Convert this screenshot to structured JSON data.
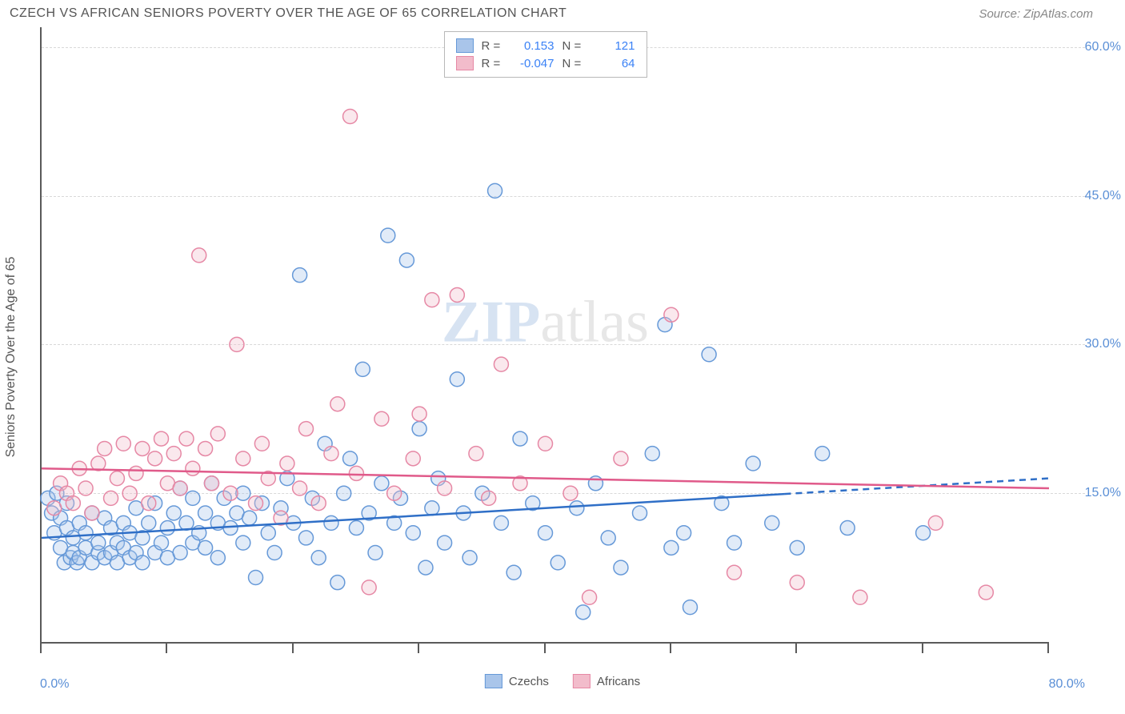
{
  "title": "CZECH VS AFRICAN SENIORS POVERTY OVER THE AGE OF 65 CORRELATION CHART",
  "source": "Source: ZipAtlas.com",
  "y_axis_label": "Seniors Poverty Over the Age of 65",
  "watermark_a": "ZIP",
  "watermark_b": "atlas",
  "chart": {
    "type": "scatter",
    "xlim": [
      0,
      80
    ],
    "ylim": [
      0,
      62
    ],
    "x_min_label": "0.0%",
    "x_max_label": "80.0%",
    "x_tick_positions": [
      0,
      10,
      20,
      30,
      40,
      50,
      60,
      70,
      80
    ],
    "y_ticks": [
      {
        "v": 15.0,
        "label": "15.0%"
      },
      {
        "v": 30.0,
        "label": "30.0%"
      },
      {
        "v": 45.0,
        "label": "45.0%"
      },
      {
        "v": 60.0,
        "label": "60.0%"
      }
    ],
    "grid_color": "#d8d8d8",
    "background_color": "#ffffff",
    "marker_radius": 9,
    "marker_stroke_width": 1.5,
    "marker_fill_opacity": 0.35,
    "series": [
      {
        "name": "Czechs",
        "legend_label": "Czechs",
        "color_stroke": "#6699d8",
        "color_fill": "#a9c5ea",
        "trend_color": "#2f6fc7",
        "trend_width": 2.5,
        "trend": {
          "x1": 0,
          "y1": 10.5,
          "x2": 80,
          "y2": 16.5,
          "dash_from_x": 59
        },
        "stats": {
          "R_label": "R =",
          "R": "0.153",
          "N_label": "N =",
          "N": "121"
        },
        "points": [
          [
            0.5,
            14.5
          ],
          [
            0.8,
            13.0
          ],
          [
            1.0,
            11.0
          ],
          [
            1.2,
            15.0
          ],
          [
            1.5,
            9.5
          ],
          [
            1.5,
            12.5
          ],
          [
            1.8,
            8.0
          ],
          [
            2.0,
            11.5
          ],
          [
            2.0,
            14.0
          ],
          [
            2.3,
            8.5
          ],
          [
            2.5,
            9.0
          ],
          [
            2.5,
            10.5
          ],
          [
            2.8,
            8.0
          ],
          [
            3.0,
            12.0
          ],
          [
            3.0,
            8.5
          ],
          [
            3.5,
            9.5
          ],
          [
            3.5,
            11.0
          ],
          [
            4.0,
            8.0
          ],
          [
            4.0,
            13.0
          ],
          [
            4.5,
            9.0
          ],
          [
            4.5,
            10.0
          ],
          [
            5.0,
            8.5
          ],
          [
            5.0,
            12.5
          ],
          [
            5.5,
            9.0
          ],
          [
            5.5,
            11.5
          ],
          [
            6.0,
            8.0
          ],
          [
            6.0,
            10.0
          ],
          [
            6.5,
            9.5
          ],
          [
            6.5,
            12.0
          ],
          [
            7.0,
            8.5
          ],
          [
            7.0,
            11.0
          ],
          [
            7.5,
            9.0
          ],
          [
            7.5,
            13.5
          ],
          [
            8.0,
            8.0
          ],
          [
            8.0,
            10.5
          ],
          [
            8.5,
            12.0
          ],
          [
            9.0,
            9.0
          ],
          [
            9.0,
            14.0
          ],
          [
            9.5,
            10.0
          ],
          [
            10.0,
            8.5
          ],
          [
            10.0,
            11.5
          ],
          [
            10.5,
            13.0
          ],
          [
            11.0,
            9.0
          ],
          [
            11.0,
            15.5
          ],
          [
            11.5,
            12.0
          ],
          [
            12.0,
            10.0
          ],
          [
            12.0,
            14.5
          ],
          [
            12.5,
            11.0
          ],
          [
            13.0,
            9.5
          ],
          [
            13.0,
            13.0
          ],
          [
            13.5,
            16.0
          ],
          [
            14.0,
            8.5
          ],
          [
            14.0,
            12.0
          ],
          [
            14.5,
            14.5
          ],
          [
            15.0,
            11.5
          ],
          [
            15.5,
            13.0
          ],
          [
            16.0,
            10.0
          ],
          [
            16.0,
            15.0
          ],
          [
            16.5,
            12.5
          ],
          [
            17.0,
            6.5
          ],
          [
            17.5,
            14.0
          ],
          [
            18.0,
            11.0
          ],
          [
            18.5,
            9.0
          ],
          [
            19.0,
            13.5
          ],
          [
            19.5,
            16.5
          ],
          [
            20.0,
            12.0
          ],
          [
            20.5,
            37.0
          ],
          [
            21.0,
            10.5
          ],
          [
            21.5,
            14.5
          ],
          [
            22.0,
            8.5
          ],
          [
            22.5,
            20.0
          ],
          [
            23.0,
            12.0
          ],
          [
            23.5,
            6.0
          ],
          [
            24.0,
            15.0
          ],
          [
            24.5,
            18.5
          ],
          [
            25.0,
            11.5
          ],
          [
            25.5,
            27.5
          ],
          [
            26.0,
            13.0
          ],
          [
            26.5,
            9.0
          ],
          [
            27.0,
            16.0
          ],
          [
            27.5,
            41.0
          ],
          [
            28.0,
            12.0
          ],
          [
            28.5,
            14.5
          ],
          [
            29.0,
            38.5
          ],
          [
            29.5,
            11.0
          ],
          [
            30.0,
            21.5
          ],
          [
            30.5,
            7.5
          ],
          [
            31.0,
            13.5
          ],
          [
            31.5,
            16.5
          ],
          [
            32.0,
            10.0
          ],
          [
            33.0,
            26.5
          ],
          [
            33.5,
            13.0
          ],
          [
            34.0,
            8.5
          ],
          [
            35.0,
            15.0
          ],
          [
            36.0,
            45.5
          ],
          [
            36.5,
            12.0
          ],
          [
            37.5,
            7.0
          ],
          [
            38.0,
            20.5
          ],
          [
            39.0,
            14.0
          ],
          [
            40.0,
            11.0
          ],
          [
            41.0,
            8.0
          ],
          [
            42.5,
            13.5
          ],
          [
            43.0,
            3.0
          ],
          [
            44.0,
            16.0
          ],
          [
            45.0,
            10.5
          ],
          [
            46.0,
            7.5
          ],
          [
            47.5,
            13.0
          ],
          [
            48.5,
            19.0
          ],
          [
            49.5,
            32.0
          ],
          [
            50.0,
            9.5
          ],
          [
            51.0,
            11.0
          ],
          [
            51.5,
            3.5
          ],
          [
            53.0,
            29.0
          ],
          [
            54.0,
            14.0
          ],
          [
            55.0,
            10.0
          ],
          [
            56.5,
            18.0
          ],
          [
            58.0,
            12.0
          ],
          [
            60.0,
            9.5
          ],
          [
            62.0,
            19.0
          ],
          [
            64.0,
            11.5
          ],
          [
            70.0,
            11.0
          ]
        ]
      },
      {
        "name": "Africans",
        "legend_label": "Africans",
        "color_stroke": "#e688a5",
        "color_fill": "#f2bccb",
        "trend_color": "#e05a8a",
        "trend_width": 2.5,
        "trend": {
          "x1": 0,
          "y1": 17.5,
          "x2": 80,
          "y2": 15.5,
          "dash_from_x": null
        },
        "stats": {
          "R_label": "R =",
          "R": "-0.047",
          "N_label": "N =",
          "N": "64"
        },
        "points": [
          [
            1.0,
            13.5
          ],
          [
            1.5,
            16.0
          ],
          [
            2.0,
            15.0
          ],
          [
            2.5,
            14.0
          ],
          [
            3.0,
            17.5
          ],
          [
            3.5,
            15.5
          ],
          [
            4.0,
            13.0
          ],
          [
            4.5,
            18.0
          ],
          [
            5.0,
            19.5
          ],
          [
            5.5,
            14.5
          ],
          [
            6.0,
            16.5
          ],
          [
            6.5,
            20.0
          ],
          [
            7.0,
            15.0
          ],
          [
            7.5,
            17.0
          ],
          [
            8.0,
            19.5
          ],
          [
            8.5,
            14.0
          ],
          [
            9.0,
            18.5
          ],
          [
            9.5,
            20.5
          ],
          [
            10.0,
            16.0
          ],
          [
            10.5,
            19.0
          ],
          [
            11.0,
            15.5
          ],
          [
            11.5,
            20.5
          ],
          [
            12.0,
            17.5
          ],
          [
            12.5,
            39.0
          ],
          [
            13.0,
            19.5
          ],
          [
            13.5,
            16.0
          ],
          [
            14.0,
            21.0
          ],
          [
            15.0,
            15.0
          ],
          [
            15.5,
            30.0
          ],
          [
            16.0,
            18.5
          ],
          [
            17.0,
            14.0
          ],
          [
            17.5,
            20.0
          ],
          [
            18.0,
            16.5
          ],
          [
            19.0,
            12.5
          ],
          [
            19.5,
            18.0
          ],
          [
            20.5,
            15.5
          ],
          [
            21.0,
            21.5
          ],
          [
            22.0,
            14.0
          ],
          [
            23.0,
            19.0
          ],
          [
            23.5,
            24.0
          ],
          [
            24.5,
            53.0
          ],
          [
            25.0,
            17.0
          ],
          [
            26.0,
            5.5
          ],
          [
            27.0,
            22.5
          ],
          [
            28.0,
            15.0
          ],
          [
            29.5,
            18.5
          ],
          [
            30.0,
            23.0
          ],
          [
            31.0,
            34.5
          ],
          [
            32.0,
            15.5
          ],
          [
            33.0,
            35.0
          ],
          [
            34.5,
            19.0
          ],
          [
            35.5,
            14.5
          ],
          [
            36.5,
            28.0
          ],
          [
            38.0,
            16.0
          ],
          [
            40.0,
            20.0
          ],
          [
            42.0,
            15.0
          ],
          [
            43.5,
            4.5
          ],
          [
            46.0,
            18.5
          ],
          [
            50.0,
            33.0
          ],
          [
            55.0,
            7.0
          ],
          [
            60.0,
            6.0
          ],
          [
            65.0,
            4.5
          ],
          [
            71.0,
            12.0
          ],
          [
            75.0,
            5.0
          ]
        ]
      }
    ]
  },
  "bottom_legend": [
    {
      "label": "Czechs",
      "fill": "#a9c5ea",
      "stroke": "#6699d8"
    },
    {
      "label": "Africans",
      "fill": "#f2bccb",
      "stroke": "#e688a5"
    }
  ]
}
